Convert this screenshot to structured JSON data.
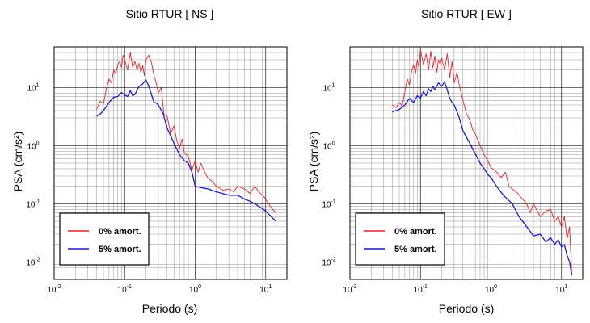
{
  "colors": {
    "undamped": "#e8222a",
    "damped": "#1a1acc",
    "grid": "#000000",
    "frame": "#000000"
  },
  "chart_data": [
    {
      "type": "line",
      "title": "Sitio RTUR [ NS ]",
      "xlabel": "Periodo (s)",
      "ylabel": "PSA (cm/s²)",
      "xscale": "log",
      "yscale": "log",
      "xlim": [
        0.01,
        20
      ],
      "ylim": [
        0.005,
        50
      ],
      "grid": true,
      "legend_position": "bottom-left",
      "xticks": [
        {
          "label": "10",
          "exp": "-2"
        },
        {
          "label": "10",
          "exp": "-1"
        },
        {
          "label": "10",
          "exp": "0"
        },
        {
          "label": "10",
          "exp": "1"
        }
      ],
      "yticks": [
        {
          "label": "10",
          "exp": "-2"
        },
        {
          "label": "10",
          "exp": "-1"
        },
        {
          "label": "10",
          "exp": "0"
        },
        {
          "label": "10",
          "exp": "1"
        }
      ],
      "series": [
        {
          "name": "0% amort.",
          "color": "#e8222a",
          "x": [
            0.04,
            0.045,
            0.05,
            0.055,
            0.06,
            0.065,
            0.07,
            0.075,
            0.08,
            0.085,
            0.09,
            0.095,
            0.1,
            0.11,
            0.12,
            0.13,
            0.14,
            0.15,
            0.16,
            0.17,
            0.18,
            0.19,
            0.2,
            0.22,
            0.24,
            0.26,
            0.28,
            0.3,
            0.33,
            0.36,
            0.4,
            0.45,
            0.5,
            0.55,
            0.6,
            0.65,
            0.7,
            0.8,
            0.9,
            1.0,
            1.1,
            1.2,
            1.3,
            1.5,
            1.7,
            2.0,
            2.5,
            3.0,
            3.5,
            4.0,
            5.0,
            6.0,
            7.0,
            8.0,
            9.0,
            10.0,
            12.0,
            14.0
          ],
          "y": [
            4.2,
            5.8,
            5.2,
            9.5,
            14,
            12,
            20,
            17,
            25,
            28,
            22,
            36,
            30,
            20,
            40,
            22,
            28,
            20,
            26,
            18,
            24,
            16,
            30,
            36,
            27,
            16,
            12,
            8,
            10,
            3.5,
            3.2,
            1.6,
            2.2,
            1.2,
            0.9,
            1.3,
            0.75,
            0.65,
            0.38,
            0.55,
            0.35,
            0.5,
            0.4,
            0.28,
            0.25,
            0.2,
            0.17,
            0.18,
            0.16,
            0.2,
            0.18,
            0.15,
            0.2,
            0.16,
            0.14,
            0.12,
            0.085,
            0.07
          ]
        },
        {
          "name": "5% amort.",
          "color": "#1a1acc",
          "x": [
            0.04,
            0.045,
            0.05,
            0.06,
            0.07,
            0.08,
            0.09,
            0.1,
            0.11,
            0.12,
            0.13,
            0.14,
            0.15,
            0.16,
            0.18,
            0.2,
            0.22,
            0.24,
            0.26,
            0.28,
            0.3,
            0.35,
            0.4,
            0.5,
            0.6,
            0.7,
            0.8,
            0.9,
            1.0,
            1.2,
            1.5,
            2.0,
            3.0,
            4.0,
            5.0,
            6.0,
            7.0,
            8.0,
            10.0,
            12.0,
            14.0
          ],
          "y": [
            3.2,
            3.5,
            4.0,
            5.5,
            6.8,
            7.0,
            8.2,
            7.4,
            7.0,
            8.8,
            7.2,
            7.6,
            9.0,
            10.5,
            11.5,
            13.5,
            10.5,
            7.5,
            5.6,
            5.4,
            5.0,
            3.6,
            2.0,
            1.1,
            0.7,
            0.55,
            0.5,
            0.35,
            0.2,
            0.19,
            0.18,
            0.16,
            0.14,
            0.14,
            0.12,
            0.11,
            0.1,
            0.09,
            0.075,
            0.06,
            0.05
          ]
        }
      ]
    },
    {
      "type": "line",
      "title": "Sitio RTUR [ EW ]",
      "xlabel": "Periodo (s)",
      "ylabel": "PSA (cm/s²)",
      "xscale": "log",
      "yscale": "log",
      "xlim": [
        0.01,
        20
      ],
      "ylim": [
        0.005,
        50
      ],
      "grid": true,
      "legend_position": "bottom-left",
      "xticks": [
        {
          "label": "10",
          "exp": "-2"
        },
        {
          "label": "10",
          "exp": "-1"
        },
        {
          "label": "10",
          "exp": "0"
        },
        {
          "label": "10",
          "exp": "1"
        }
      ],
      "yticks": [
        {
          "label": "10",
          "exp": "-2"
        },
        {
          "label": "10",
          "exp": "-1"
        },
        {
          "label": "10",
          "exp": "0"
        },
        {
          "label": "10",
          "exp": "1"
        }
      ],
      "series": [
        {
          "name": "0% amort.",
          "color": "#e8222a",
          "x": [
            0.04,
            0.045,
            0.05,
            0.055,
            0.06,
            0.065,
            0.07,
            0.075,
            0.08,
            0.085,
            0.09,
            0.095,
            0.1,
            0.11,
            0.12,
            0.13,
            0.14,
            0.15,
            0.16,
            0.17,
            0.18,
            0.19,
            0.2,
            0.22,
            0.24,
            0.26,
            0.28,
            0.3,
            0.33,
            0.36,
            0.4,
            0.45,
            0.5,
            0.55,
            0.6,
            0.7,
            0.8,
            0.9,
            1.0,
            1.2,
            1.4,
            1.6,
            1.8,
            2.0,
            2.4,
            2.8,
            3.2,
            3.6,
            4.0,
            5.0,
            6.0,
            7.0,
            8.0,
            9.0,
            10.0,
            11.0,
            12.0,
            13.0,
            14.0
          ],
          "y": [
            5.0,
            4.5,
            5.5,
            4.8,
            8.5,
            14,
            11,
            19,
            25,
            17,
            30,
            22,
            45,
            25,
            38,
            20,
            42,
            22,
            35,
            18,
            30,
            25,
            32,
            20,
            38,
            15,
            28,
            12,
            18,
            10,
            6,
            3.5,
            2.8,
            1.9,
            1.6,
            1.0,
            0.7,
            0.55,
            0.42,
            0.35,
            0.28,
            0.35,
            0.2,
            0.18,
            0.15,
            0.12,
            0.1,
            0.07,
            0.1,
            0.06,
            0.075,
            0.08,
            0.05,
            0.06,
            0.04,
            0.06,
            0.025,
            0.04,
            0.006
          ]
        },
        {
          "name": "5% amort.",
          "color": "#1a1acc",
          "x": [
            0.04,
            0.05,
            0.06,
            0.07,
            0.08,
            0.09,
            0.1,
            0.11,
            0.12,
            0.13,
            0.14,
            0.15,
            0.16,
            0.18,
            0.2,
            0.22,
            0.24,
            0.26,
            0.28,
            0.3,
            0.35,
            0.4,
            0.5,
            0.6,
            0.7,
            0.8,
            0.9,
            1.0,
            1.2,
            1.5,
            2.0,
            2.5,
            3.0,
            3.5,
            4.0,
            5.0,
            6.0,
            7.0,
            8.0,
            9.0,
            10.0,
            11.0,
            12.0,
            13.0,
            14.0
          ],
          "y": [
            3.8,
            4.2,
            5.0,
            6.5,
            5.5,
            7.2,
            6.5,
            8.5,
            7.2,
            9.5,
            8.5,
            10.5,
            9.0,
            12,
            10.5,
            12.5,
            9.0,
            6.5,
            5.5,
            5.0,
            3.2,
            1.8,
            1.1,
            0.72,
            0.5,
            0.4,
            0.32,
            0.28,
            0.2,
            0.14,
            0.1,
            0.06,
            0.045,
            0.035,
            0.028,
            0.03,
            0.022,
            0.026,
            0.02,
            0.024,
            0.018,
            0.02,
            0.013,
            0.01,
            0.006
          ]
        }
      ]
    }
  ]
}
